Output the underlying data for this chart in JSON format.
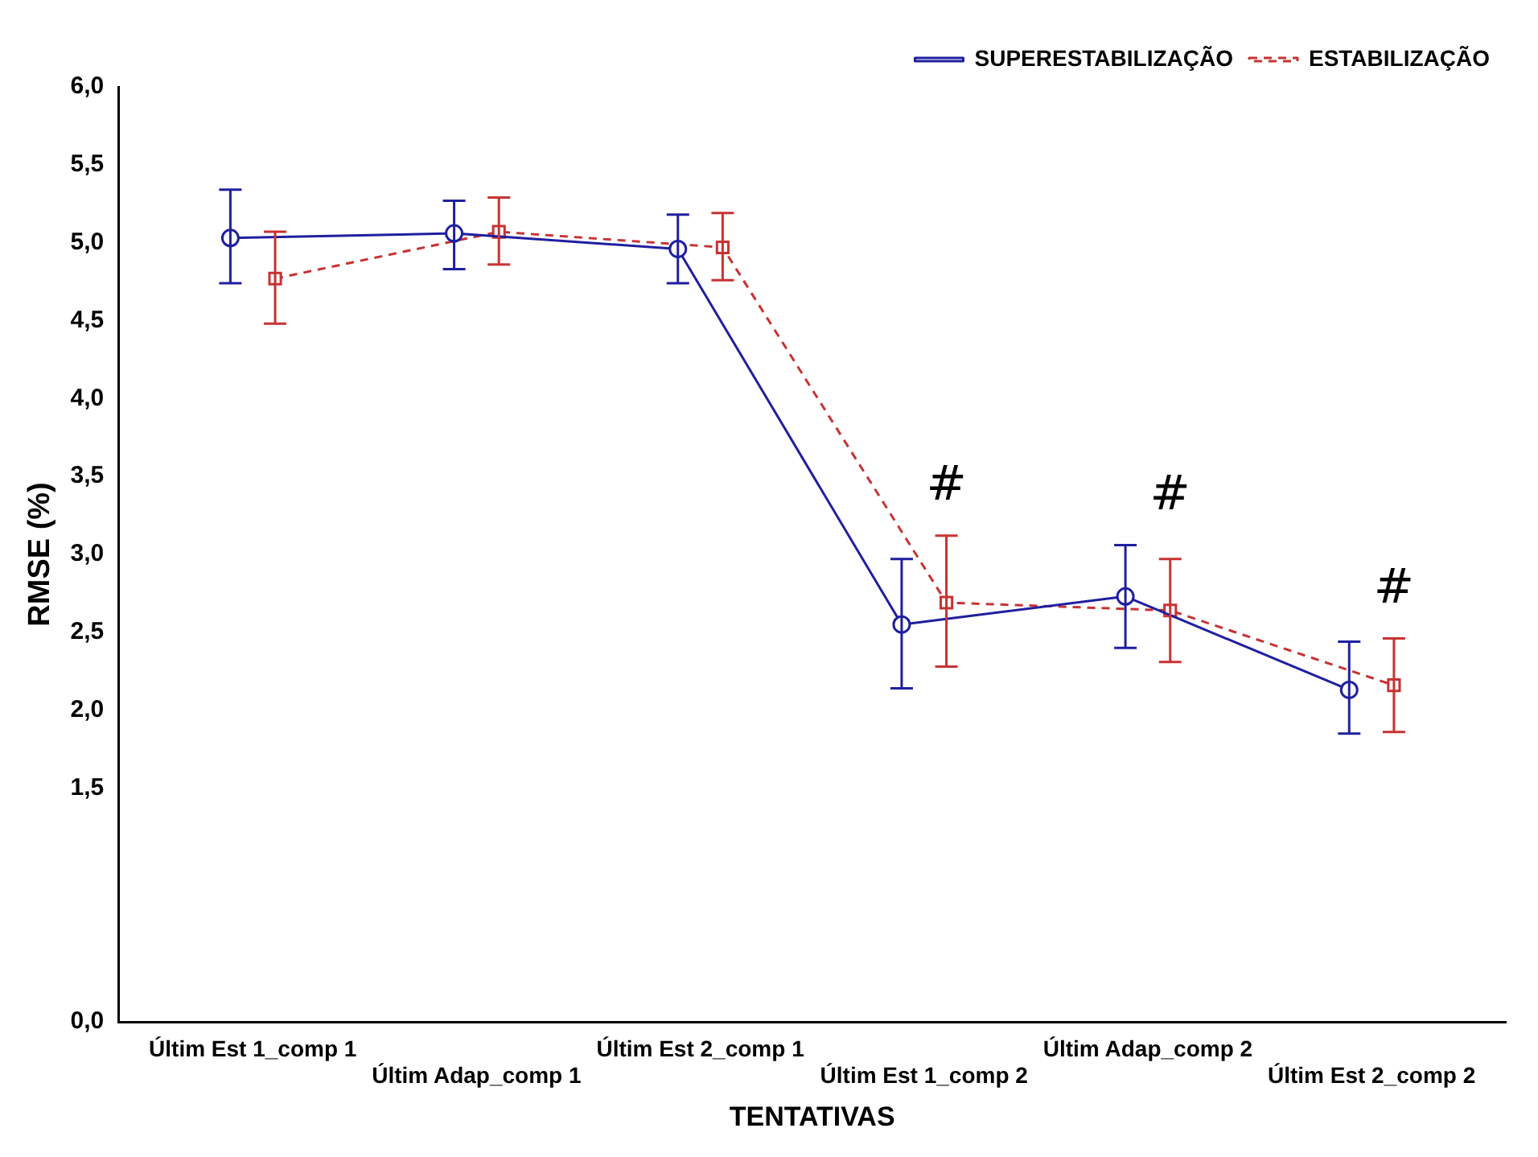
{
  "chart_data": {
    "type": "line",
    "xlabel": "TENTATIVAS",
    "ylabel": "RMSE (%)",
    "categories": [
      "Últim Est 1_comp 1",
      "Últim Adap_comp 1",
      "Últim Est 2_comp 1",
      "Últim Est 1_comp 2",
      "Últim Adap_comp 2",
      "Últim Est 2_comp 2"
    ],
    "series": [
      {
        "name": "SUPERESTABILIZAÇÃO",
        "color": "#1f1fa0",
        "marker": "circle",
        "line_style": "solid",
        "values": [
          5.03,
          5.06,
          4.96,
          2.55,
          2.73,
          2.13
        ],
        "errors": [
          [
            4.74,
            5.34
          ],
          [
            4.83,
            5.27
          ],
          [
            4.74,
            5.18
          ],
          [
            2.14,
            2.97
          ],
          [
            2.4,
            3.06
          ],
          [
            1.85,
            2.44
          ]
        ]
      },
      {
        "name": "ESTABILIZAÇÃO",
        "color": "#c83232",
        "marker": "square",
        "line_style": "dashed",
        "values": [
          4.77,
          5.07,
          4.97,
          2.69,
          2.64,
          2.16
        ],
        "errors": [
          [
            4.48,
            5.07
          ],
          [
            4.86,
            5.29
          ],
          [
            4.76,
            5.19
          ],
          [
            2.28,
            3.12
          ],
          [
            2.31,
            2.97
          ],
          [
            1.86,
            2.46
          ]
        ]
      }
    ],
    "ylim": [
      0,
      6
    ],
    "yticks": [
      {
        "value": 0,
        "label": "0,0"
      },
      {
        "value": 1.5,
        "label": "1,5"
      },
      {
        "value": 2,
        "label": "2,0"
      },
      {
        "value": 2.5,
        "label": "2,5"
      },
      {
        "value": 3,
        "label": "3,0"
      },
      {
        "value": 3.5,
        "label": "3,5"
      },
      {
        "value": 4,
        "label": "4,0"
      },
      {
        "value": 4.5,
        "label": "4,5"
      },
      {
        "value": 5,
        "label": "5,0"
      },
      {
        "value": 5.5,
        "label": "5,5"
      },
      {
        "value": 6,
        "label": "6,0"
      }
    ],
    "annotations": [
      "#",
      "#",
      "#"
    ],
    "grid": false,
    "legend": "top right"
  }
}
